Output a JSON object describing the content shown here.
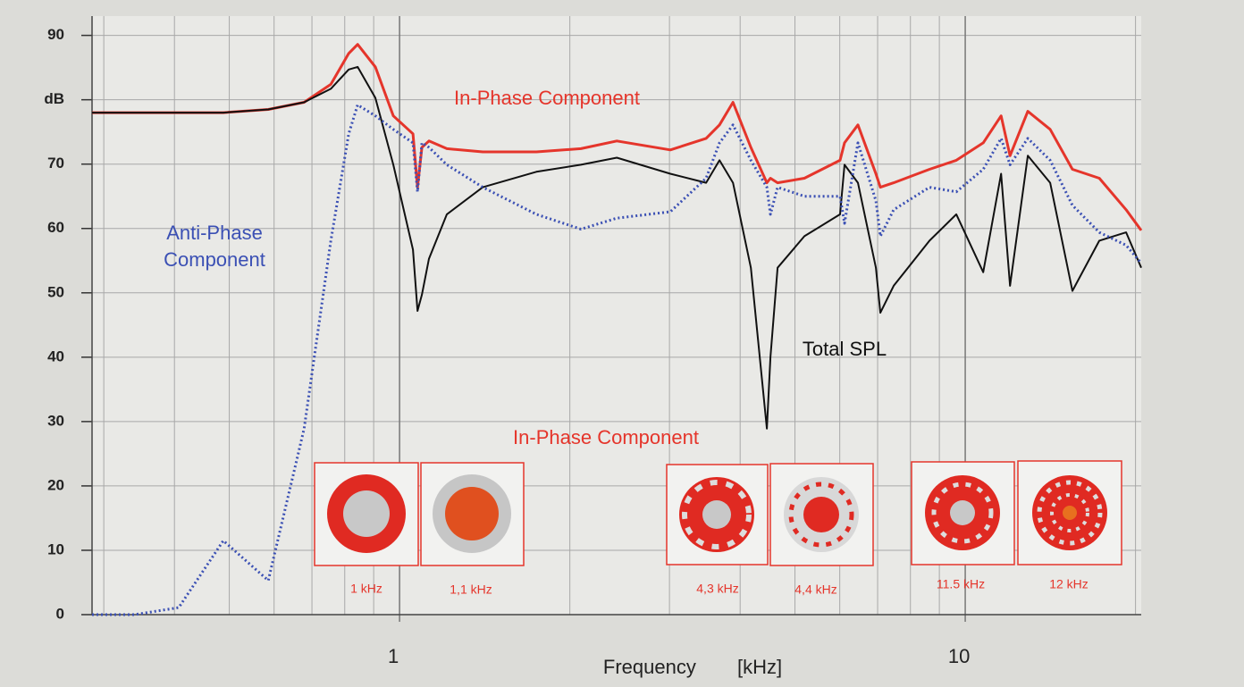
{
  "chart_data": {
    "type": "line",
    "x_label": "Frequency [kHz]",
    "log_x": true,
    "xlim": [
      0.286,
      20.47
    ],
    "xticks": [
      1,
      10
    ],
    "xgrid": [
      0.3,
      0.4,
      0.5,
      0.6,
      0.7,
      0.8,
      0.9,
      2,
      3,
      4,
      5,
      6,
      7,
      8,
      9,
      20
    ],
    "ylim": [
      0,
      93
    ],
    "yticks": [
      0,
      10,
      20,
      30,
      40,
      50,
      60,
      70,
      {
        "value": 80,
        "label": "dB"
      },
      90
    ],
    "grid": true,
    "x": [
      0.286,
      0.34,
      0.407,
      0.488,
      0.586,
      0.678,
      0.756,
      0.813,
      0.843,
      0.906,
      0.975,
      1.056,
      1.076,
      1.095,
      1.127,
      1.212,
      1.403,
      1.745,
      2.093,
      2.421,
      3.011,
      3.483,
      3.678,
      3.885,
      4.178,
      4.46,
      4.525,
      4.658,
      5.196,
      6.008,
      6.119,
      6.462,
      6.95,
      7.078,
      7.473,
      8.646,
      9.643,
      10.76,
      11.57,
      12.0,
      12.9,
      14.13,
      15.47,
      17.26,
      19.25,
      20.47
    ],
    "series": [
      {
        "color": "#e5352b",
        "style": "solid",
        "values": [
          78,
          78,
          78,
          78,
          78.5,
          79.6,
          82.4,
          87.2,
          88.6,
          85.1,
          77.5,
          74.7,
          66.4,
          72.6,
          73.6,
          72.4,
          71.9,
          71.9,
          72.4,
          73.6,
          72.2,
          74.0,
          76.1,
          79.6,
          72.6,
          67.1,
          67.8,
          67.1,
          67.8,
          70.6,
          73.3,
          76.1,
          68.5,
          66.4,
          67.1,
          69.2,
          70.6,
          73.3,
          77.5,
          71.3,
          78.2,
          75.4,
          69.2,
          67.8,
          62.9,
          59.7
        ]
      },
      {
        "color": "#111111",
        "style": "solid",
        "values": [
          78,
          78,
          78,
          78,
          78.5,
          79.6,
          81.7,
          84.7,
          85.1,
          80.3,
          69.9,
          56.7,
          47.2,
          49.7,
          55.3,
          62.2,
          66.4,
          68.8,
          69.9,
          71.0,
          68.5,
          67.1,
          70.6,
          67.1,
          53.9,
          28.9,
          40.0,
          53.9,
          58.8,
          62.2,
          69.9,
          67.1,
          53.9,
          46.9,
          51.1,
          58.1,
          62.2,
          53.2,
          68.5,
          51.1,
          71.3,
          67.1,
          50.3,
          58.1,
          59.4,
          53.9
        ]
      },
      {
        "color": "#3b50b4",
        "style": "dotted",
        "values": [
          0,
          0,
          1.1,
          11.5,
          5.3,
          28.9,
          58.1,
          74.7,
          79.2,
          77.5,
          75.4,
          73.3,
          65.7,
          73.3,
          72.6,
          69.9,
          66.4,
          62.2,
          59.9,
          61.6,
          62.6,
          67.8,
          73.3,
          76.1,
          70.6,
          66.4,
          62.2,
          66.4,
          65.0,
          65.0,
          60.8,
          73.3,
          64.3,
          58.8,
          62.9,
          66.4,
          65.7,
          69.2,
          74.0,
          69.9,
          74.0,
          70.6,
          63.6,
          59.4,
          57.4,
          54.6
        ]
      }
    ],
    "annotations": [
      "In-Phase Component",
      "Anti-Phase",
      "Component",
      "Total SPL",
      "In-Phase Component"
    ],
    "insets": [
      "1 kHz",
      "1,1 kHz",
      "4,3 kHz",
      "4,4 kHz",
      "11.5 kHz",
      "12 kHz"
    ]
  }
}
